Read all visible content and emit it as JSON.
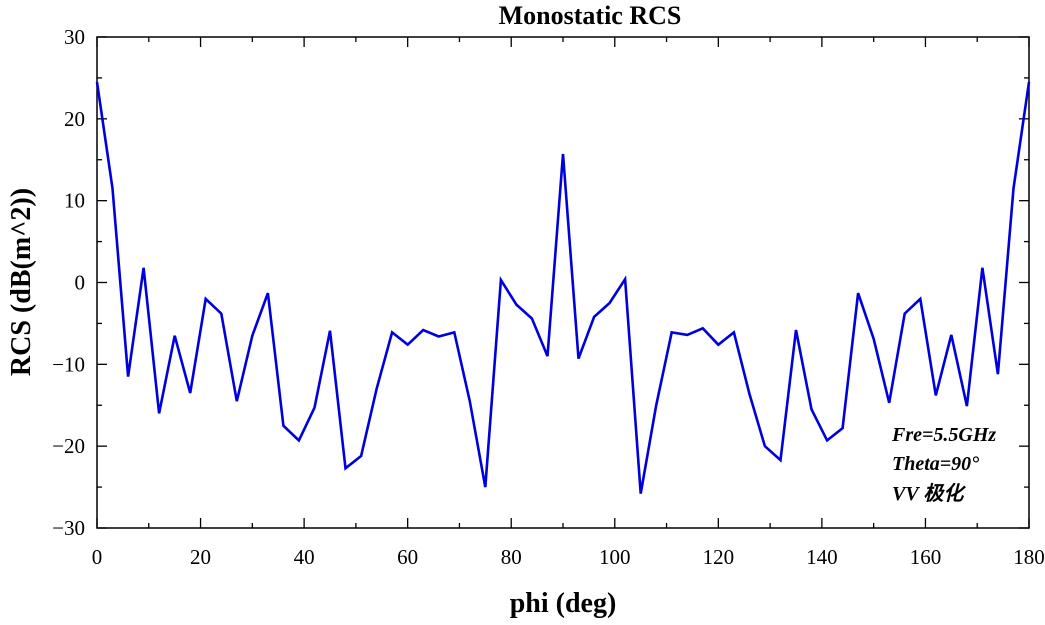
{
  "chart_data": {
    "type": "line",
    "title": "Monostatic RCS",
    "xlabel": "phi (deg)",
    "ylabel": "RCS (dB(m^2))",
    "xlim": [
      0,
      180
    ],
    "ylim": [
      -30,
      30
    ],
    "x_ticks": [
      0,
      20,
      40,
      60,
      80,
      100,
      120,
      140,
      160,
      180
    ],
    "y_ticks": [
      -30,
      -20,
      -10,
      0,
      10,
      20,
      30
    ],
    "x_tick_labels": [
      "0",
      "20",
      "40",
      "60",
      "80",
      "100",
      "120",
      "140",
      "160",
      "180"
    ],
    "y_tick_labels": [
      "−30",
      "−20",
      "−10",
      "0",
      "10",
      "20",
      "30"
    ],
    "grid": false,
    "annotations": [
      "Fre=5.5GHz",
      "Theta=90°",
      "VV 极化"
    ],
    "series": [
      {
        "color": "#0000dd",
        "x": [
          0,
          3,
          6,
          9,
          12,
          15,
          18,
          21,
          24,
          27,
          30,
          33,
          36,
          39,
          42,
          45,
          48,
          51,
          54,
          57,
          60,
          63,
          66,
          69,
          72,
          75,
          78,
          81,
          84,
          87,
          90,
          93,
          96,
          99,
          102,
          105,
          108,
          111,
          114,
          117,
          120,
          123,
          126,
          129,
          132,
          135,
          138,
          141,
          144,
          147,
          150,
          153,
          156,
          159,
          162,
          165,
          168,
          171,
          174,
          177,
          180
        ],
        "y": [
          24.5,
          11.5,
          -11.5,
          1.8,
          -16,
          -6.5,
          -13.5,
          -2,
          -3.8,
          -14.5,
          -6.5,
          -1.3,
          -17.5,
          -19.3,
          -15.3,
          -5.9,
          -22.7,
          -21.2,
          -13,
          -6.1,
          -7.6,
          -5.8,
          -6.6,
          -6.1,
          -14.5,
          -25,
          0.3,
          -2.7,
          -4.4,
          -9,
          15.7,
          -9.3,
          -4.2,
          -2.5,
          0.4,
          -25.8,
          -15,
          -6.1,
          -6.4,
          -5.6,
          -7.6,
          -6.1,
          -13.6,
          -20,
          -21.7,
          -5.8,
          -15.5,
          -19.3,
          -17.8,
          -1.3,
          -6.9,
          -14.7,
          -3.8,
          -2,
          -13.8,
          -6.4,
          -15.1,
          1.8,
          -11.2,
          11.5,
          24.5
        ]
      }
    ]
  }
}
